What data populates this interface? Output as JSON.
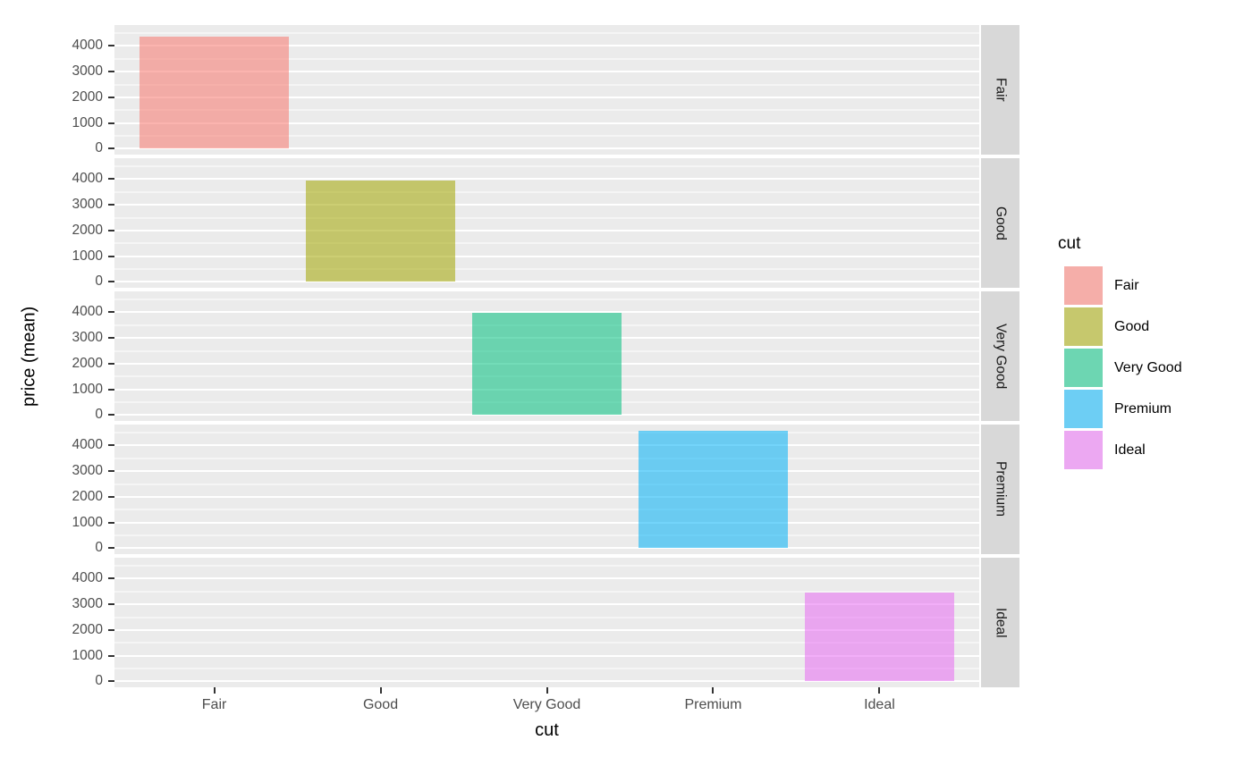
{
  "chart_data": {
    "type": "bar",
    "title": "",
    "xlabel": "cut",
    "ylabel": "price (mean)",
    "categories": [
      "Fair",
      "Good",
      "Very Good",
      "Premium",
      "Ideal"
    ],
    "facets": [
      {
        "label": "Fair",
        "category": "Fair",
        "value": 4359,
        "fill": "rgba(248,118,109,0.55)",
        "base_hex": "#F8766D"
      },
      {
        "label": "Good",
        "category": "Good",
        "value": 3929,
        "fill": "rgba(163,165,0,0.55)",
        "base_hex": "#A3A500"
      },
      {
        "label": "Very Good",
        "category": "Very Good",
        "value": 3982,
        "fill": "rgba(0,191,125,0.55)",
        "base_hex": "#00BF7D"
      },
      {
        "label": "Premium",
        "category": "Premium",
        "value": 4584,
        "fill": "rgba(0,176,246,0.55)",
        "base_hex": "#00B0F6"
      },
      {
        "label": "Ideal",
        "category": "Ideal",
        "value": 3458,
        "fill": "rgba(231,107,243,0.55)",
        "base_hex": "#E76BF3"
      }
    ],
    "y_major_ticks": [
      0,
      1000,
      2000,
      3000,
      4000
    ],
    "y_minor_ticks": [
      500,
      1500,
      2500,
      3500,
      4500
    ],
    "ylim": [
      -229,
      4813
    ],
    "x_expand": {
      "units": 5,
      "pad": 0.6,
      "bar_width_units": 0.9
    },
    "grid": "on",
    "legend": {
      "title": "cut",
      "position": "right"
    },
    "style": {
      "panel_bg": "#EBEBEB",
      "grid_color": "#FFFFFF",
      "strip_bg": "#D8D8D8",
      "tick_text_color": "#4D4D4D",
      "axis_title_color": "#000000",
      "strip_text_color": "#1A1A1A",
      "legend_key_bg": "#F2F2F2"
    }
  }
}
